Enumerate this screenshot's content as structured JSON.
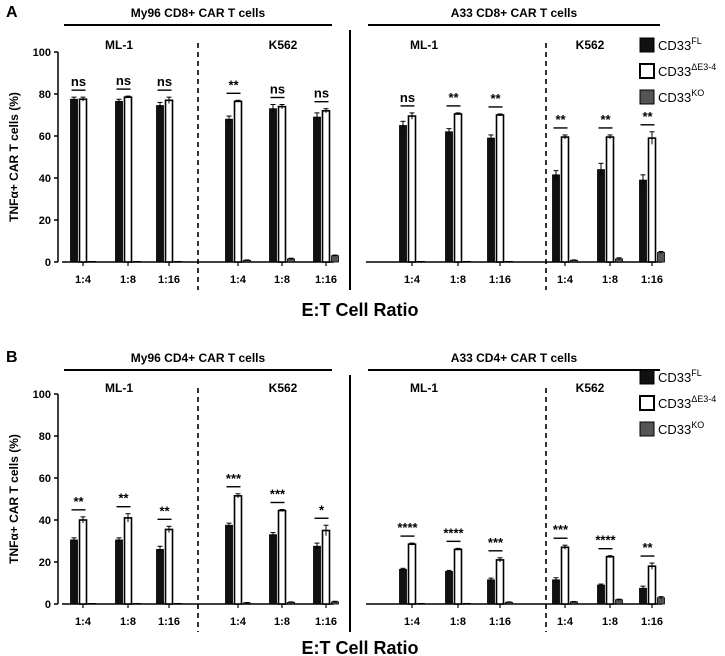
{
  "figure": {
    "xlabel": "E:T Cell Ratio",
    "legend": [
      {
        "key": "fl",
        "base": "CD33",
        "sup": "FL",
        "style": "solid"
      },
      {
        "key": "e34",
        "base": "CD33",
        "sup": "ΔE3-4",
        "style": "open"
      },
      {
        "key": "ko",
        "base": "CD33",
        "sup": "KO",
        "style": "gray"
      }
    ],
    "colors": {
      "fl": "#111111",
      "e34": "#ffffff",
      "ko": "#555555",
      "axis": "#000000"
    }
  },
  "chart_data": [
    {
      "panel_label": "A",
      "type": "bar",
      "ylabel": "TNFα+ CAR T cells (%)",
      "ylim": [
        0,
        100
      ],
      "yticks": [
        0,
        20,
        40,
        60,
        80,
        100
      ],
      "categories": [
        "1:4",
        "1:8",
        "1:16"
      ],
      "groups": [
        {
          "title": "My96 CD8+ CAR T cells",
          "subgroups": [
            {
              "target": "ML-1",
              "fl": [
                77.5,
                76.5,
                74.5
              ],
              "e34": [
                77.5,
                78.5,
                77.0
              ],
              "ko": [
                0.1,
                0.1,
                0.1
              ],
              "fl_err": [
                1.0,
                1.0,
                1.5
              ],
              "e34_err": [
                1.0,
                0.5,
                1.5
              ],
              "ko_err": [
                0,
                0,
                0
              ],
              "sig": [
                "ns",
                "ns",
                "ns"
              ]
            },
            {
              "target": "K562",
              "fl": [
                68.0,
                73.0,
                69.0
              ],
              "e34": [
                76.5,
                74.0,
                72.0
              ],
              "ko": [
                0.8,
                1.5,
                3.0
              ],
              "fl_err": [
                1.5,
                2.0,
                2.0
              ],
              "e34_err": [
                0.5,
                1.0,
                1.0
              ],
              "ko_err": [
                0.2,
                0.3,
                0.3
              ],
              "sig": [
                "**",
                "ns",
                "ns"
              ]
            }
          ]
        },
        {
          "title": "A33 CD8+ CAR T cells",
          "subgroups": [
            {
              "target": "ML-1",
              "fl": [
                65.0,
                62.0,
                59.0
              ],
              "e34": [
                69.5,
                70.5,
                70.0
              ],
              "ko": [
                0.3,
                0.3,
                0.3
              ],
              "fl_err": [
                2.0,
                1.5,
                1.5
              ],
              "e34_err": [
                1.5,
                0.5,
                0.5
              ],
              "ko_err": [
                0,
                0,
                0
              ],
              "sig": [
                "ns",
                "**",
                "**"
              ]
            },
            {
              "target": "K562",
              "fl": [
                41.5,
                44.0,
                39.0
              ],
              "e34": [
                59.5,
                59.5,
                59.0
              ],
              "ko": [
                0.8,
                1.5,
                4.5
              ],
              "fl_err": [
                2.0,
                3.0,
                2.5
              ],
              "e34_err": [
                1.0,
                1.0,
                3.0
              ],
              "ko_err": [
                0.2,
                0.5,
                0.5
              ],
              "sig": [
                "**",
                "**",
                "**"
              ]
            }
          ]
        }
      ]
    },
    {
      "panel_label": "B",
      "type": "bar",
      "ylabel": "TNFα+ CAR T cells (%)",
      "ylim": [
        0,
        100
      ],
      "yticks": [
        0,
        20,
        40,
        60,
        80,
        100
      ],
      "categories": [
        "1:4",
        "1:8",
        "1:16"
      ],
      "groups": [
        {
          "title": "My96 CD4+ CAR T cells",
          "subgroups": [
            {
              "target": "ML-1",
              "fl": [
                30.5,
                30.5,
                26.0
              ],
              "e34": [
                40.0,
                41.0,
                35.5
              ],
              "ko": [
                0.2,
                0.2,
                0.2
              ],
              "fl_err": [
                1.0,
                1.0,
                1.5
              ],
              "e34_err": [
                1.5,
                2.0,
                1.5
              ],
              "ko_err": [
                0,
                0,
                0
              ],
              "sig": [
                "**",
                "**",
                "**"
              ]
            },
            {
              "target": "K562",
              "fl": [
                37.5,
                33.0,
                27.5
              ],
              "e34": [
                51.5,
                44.5,
                35.0
              ],
              "ko": [
                0.5,
                0.8,
                1.0
              ],
              "fl_err": [
                1.0,
                1.0,
                1.5
              ],
              "e34_err": [
                1.0,
                0.5,
                2.5
              ],
              "ko_err": [
                0.2,
                0.2,
                0.3
              ],
              "sig": [
                "***",
                "***",
                "*"
              ]
            }
          ]
        },
        {
          "title": "A33 CD4+ CAR T cells",
          "subgroups": [
            {
              "target": "ML-1",
              "fl": [
                16.5,
                15.5,
                11.5
              ],
              "e34": [
                28.5,
                26.0,
                21.0
              ],
              "ko": [
                0.3,
                0.3,
                0.8
              ],
              "fl_err": [
                0.5,
                0.5,
                0.8
              ],
              "e34_err": [
                0.5,
                0.5,
                1.0
              ],
              "ko_err": [
                0,
                0,
                0.2
              ],
              "sig": [
                "****",
                "****",
                "***"
              ]
            },
            {
              "target": "K562",
              "fl": [
                11.5,
                9.0,
                7.5
              ],
              "e34": [
                27.0,
                22.5,
                18.0
              ],
              "ko": [
                1.0,
                2.0,
                3.0
              ],
              "fl_err": [
                1.0,
                0.5,
                1.0
              ],
              "e34_err": [
                1.0,
                0.5,
                1.5
              ],
              "ko_err": [
                0.2,
                0.3,
                0.5
              ],
              "sig": [
                "***",
                "****",
                "**"
              ]
            }
          ]
        }
      ]
    }
  ]
}
